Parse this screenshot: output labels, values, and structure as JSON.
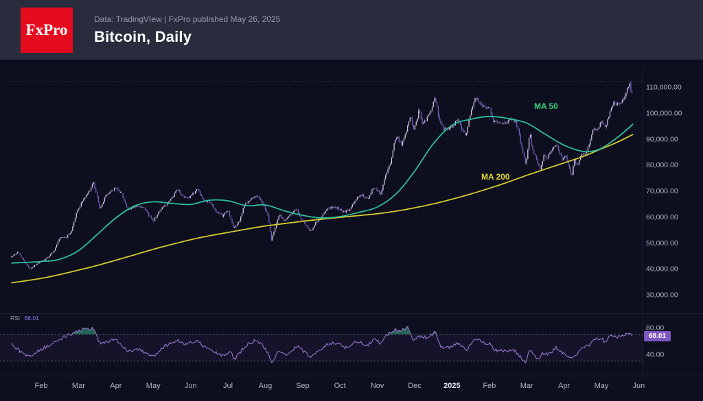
{
  "header": {
    "logo_text": "FxPro",
    "meta": "Data: TradingVIew | FxPro published May 26, 2025",
    "title": "Bitcoin, Daily"
  },
  "colors": {
    "page_bg": "#0d0f1e",
    "header_bg": "#282c3c",
    "logo_red": "#e60a1e",
    "candle_up": "#e3daf3",
    "candle_down": "#7b61c9",
    "wick": "#9c87d6",
    "ma50": "#2bbf9e",
    "ma50_label": "#35d07f",
    "ma200": "#d6ca2e",
    "ma200_label": "#e3d930",
    "rsi_line": "#9575cd",
    "badge_bg": "#7e57c2",
    "axis_text": "#b2b5be"
  },
  "chart_data": {
    "type": "candlestick",
    "symbol": "Bitcoin",
    "timeframe": "Daily",
    "title": "Bitcoin, Daily",
    "x_axis_note": "t = months after Feb 1 2024",
    "y_axis": {
      "min": 30000,
      "max": 110000,
      "tick_step": 10000
    },
    "high_line": 112000,
    "y_ticks": [
      {
        "label": "110,000.00",
        "value": 110000
      },
      {
        "label": "100,000.00",
        "value": 100000
      },
      {
        "label": "90,000.00",
        "value": 90000
      },
      {
        "label": "80,000.00",
        "value": 80000
      },
      {
        "label": "70,000.00",
        "value": 70000
      },
      {
        "label": "60,000.00",
        "value": 60000
      },
      {
        "label": "50,000.00",
        "value": 50000
      },
      {
        "label": "40,000.00",
        "value": 40000
      },
      {
        "label": "30,000.00",
        "value": 30000
      }
    ],
    "x_ticks": [
      {
        "label": "Feb",
        "t": 0
      },
      {
        "label": "Mar",
        "t": 1
      },
      {
        "label": "Apr",
        "t": 2
      },
      {
        "label": "May",
        "t": 3
      },
      {
        "label": "Jun",
        "t": 4
      },
      {
        "label": "Jul",
        "t": 5
      },
      {
        "label": "Aug",
        "t": 6
      },
      {
        "label": "Sep",
        "t": 7
      },
      {
        "label": "Oct",
        "t": 8
      },
      {
        "label": "Nov",
        "t": 9
      },
      {
        "label": "Dec",
        "t": 10
      },
      {
        "label": "2025",
        "t": 11,
        "strong": true
      },
      {
        "label": "Feb",
        "t": 12
      },
      {
        "label": "Mar",
        "t": 13
      },
      {
        "label": "Apr",
        "t": 14
      },
      {
        "label": "May",
        "t": 15
      },
      {
        "label": "Jun",
        "t": 16
      }
    ],
    "price_path": [
      [
        -0.8,
        44600
      ],
      [
        -0.62,
        46500
      ],
      [
        -0.45,
        42800
      ],
      [
        -0.3,
        40000
      ],
      [
        -0.12,
        41800
      ],
      [
        0,
        42800
      ],
      [
        0.18,
        44300
      ],
      [
        0.35,
        47100
      ],
      [
        0.5,
        51800
      ],
      [
        0.68,
        52200
      ],
      [
        0.8,
        54200
      ],
      [
        0.95,
        61800
      ],
      [
        1.1,
        66100
      ],
      [
        1.25,
        69000
      ],
      [
        1.4,
        73000
      ],
      [
        1.5,
        67800
      ],
      [
        1.58,
        62800
      ],
      [
        1.7,
        67500
      ],
      [
        1.85,
        69800
      ],
      [
        2,
        71200
      ],
      [
        2.15,
        69100
      ],
      [
        2.32,
        62500
      ],
      [
        2.5,
        64000
      ],
      [
        2.65,
        63900
      ],
      [
        2.78,
        62800
      ],
      [
        2.9,
        60300
      ],
      [
        3,
        58500
      ],
      [
        3.2,
        62900
      ],
      [
        3.45,
        66300
      ],
      [
        3.65,
        70500
      ],
      [
        3.8,
        67800
      ],
      [
        3.95,
        67500
      ],
      [
        4.1,
        69300
      ],
      [
        4.18,
        71100
      ],
      [
        4.35,
        66200
      ],
      [
        4.5,
        66000
      ],
      [
        4.7,
        61800
      ],
      [
        4.85,
        60300
      ],
      [
        5,
        62700
      ],
      [
        5.15,
        55500
      ],
      [
        5.3,
        58200
      ],
      [
        5.45,
        64800
      ],
      [
        5.65,
        67100
      ],
      [
        5.8,
        68200
      ],
      [
        5.95,
        64600
      ],
      [
        6.08,
        60200
      ],
      [
        6.16,
        50700
      ],
      [
        6.28,
        56800
      ],
      [
        6.38,
        60900
      ],
      [
        6.5,
        58700
      ],
      [
        6.7,
        61200
      ],
      [
        6.85,
        63200
      ],
      [
        6.95,
        59100
      ],
      [
        7.05,
        57500
      ],
      [
        7.2,
        54200
      ],
      [
        7.35,
        57600
      ],
      [
        7.5,
        59800
      ],
      [
        7.65,
        63300
      ],
      [
        7.8,
        63600
      ],
      [
        7.95,
        63300
      ],
      [
        8.1,
        61900
      ],
      [
        8.25,
        62500
      ],
      [
        8.45,
        67400
      ],
      [
        8.6,
        68400
      ],
      [
        8.75,
        66600
      ],
      [
        8.9,
        71500
      ],
      [
        9,
        70200
      ],
      [
        9.1,
        68700
      ],
      [
        9.2,
        75600
      ],
      [
        9.35,
        80400
      ],
      [
        9.45,
        88700
      ],
      [
        9.55,
        90500
      ],
      [
        9.65,
        87300
      ],
      [
        9.8,
        94300
      ],
      [
        9.9,
        98900
      ],
      [
        9.96,
        93100
      ],
      [
        10.05,
        96400
      ],
      [
        10.12,
        101500
      ],
      [
        10.2,
        95900
      ],
      [
        10.3,
        97300
      ],
      [
        10.45,
        101400
      ],
      [
        10.55,
        106100
      ],
      [
        10.65,
        97500
      ],
      [
        10.75,
        94300
      ],
      [
        10.9,
        93700
      ],
      [
        11,
        94400
      ],
      [
        11.15,
        98100
      ],
      [
        11.27,
        93500
      ],
      [
        11.38,
        91200
      ],
      [
        11.5,
        100500
      ],
      [
        11.62,
        106300
      ],
      [
        11.75,
        103700
      ],
      [
        11.9,
        102100
      ],
      [
        12,
        102400
      ],
      [
        12.1,
        96600
      ],
      [
        12.25,
        96500
      ],
      [
        12.4,
        95800
      ],
      [
        12.55,
        97600
      ],
      [
        12.7,
        96600
      ],
      [
        12.8,
        91500
      ],
      [
        12.9,
        84700
      ],
      [
        12.97,
        79800
      ],
      [
        13.04,
        86500
      ],
      [
        13.08,
        94000
      ],
      [
        13.14,
        86000
      ],
      [
        13.22,
        84300
      ],
      [
        13.3,
        80700
      ],
      [
        13.36,
        78600
      ],
      [
        13.46,
        83700
      ],
      [
        13.56,
        82600
      ],
      [
        13.66,
        86100
      ],
      [
        13.8,
        87500
      ],
      [
        13.95,
        82400
      ],
      [
        14.05,
        83200
      ],
      [
        14.15,
        78400
      ],
      [
        14.21,
        75800
      ],
      [
        14.27,
        82600
      ],
      [
        14.36,
        79600
      ],
      [
        14.46,
        84500
      ],
      [
        14.56,
        84000
      ],
      [
        14.66,
        87300
      ],
      [
        14.76,
        93400
      ],
      [
        14.9,
        94200
      ],
      [
        15,
        96500
      ],
      [
        15.1,
        94300
      ],
      [
        15.22,
        99900
      ],
      [
        15.32,
        104100
      ],
      [
        15.42,
        103500
      ],
      [
        15.52,
        103200
      ],
      [
        15.62,
        106600
      ],
      [
        15.7,
        109600
      ],
      [
        15.76,
        111000
      ],
      [
        15.81,
        107600
      ],
      [
        15.85,
        109300
      ]
    ],
    "ma50": {
      "label": "MA 50",
      "path": [
        [
          -0.8,
          42200
        ],
        [
          0,
          42800
        ],
        [
          0.5,
          43700
        ],
        [
          1,
          47000
        ],
        [
          1.5,
          53200
        ],
        [
          2,
          59600
        ],
        [
          2.5,
          64200
        ],
        [
          3,
          65800
        ],
        [
          3.5,
          65200
        ],
        [
          4,
          64800
        ],
        [
          4.5,
          66400
        ],
        [
          5,
          66200
        ],
        [
          5.5,
          64300
        ],
        [
          6,
          64600
        ],
        [
          6.5,
          62400
        ],
        [
          7,
          60600
        ],
        [
          7.5,
          59600
        ],
        [
          8,
          60100
        ],
        [
          8.5,
          61700
        ],
        [
          9,
          63800
        ],
        [
          9.5,
          68800
        ],
        [
          10,
          77600
        ],
        [
          10.5,
          88200
        ],
        [
          11,
          95300
        ],
        [
          11.5,
          97600
        ],
        [
          12,
          98700
        ],
        [
          12.5,
          97900
        ],
        [
          13,
          96100
        ],
        [
          13.5,
          91800
        ],
        [
          14,
          87600
        ],
        [
          14.5,
          85200
        ],
        [
          14.8,
          85400
        ],
        [
          15,
          86400
        ],
        [
          15.3,
          89200
        ],
        [
          15.6,
          92600
        ],
        [
          15.85,
          95800
        ]
      ]
    },
    "ma200": {
      "label": "MA 200",
      "path": [
        [
          -0.8,
          34600
        ],
        [
          0,
          36300
        ],
        [
          0.5,
          37800
        ],
        [
          1,
          39500
        ],
        [
          1.5,
          41300
        ],
        [
          2,
          43300
        ],
        [
          2.5,
          45400
        ],
        [
          3,
          47500
        ],
        [
          3.5,
          49400
        ],
        [
          4,
          51200
        ],
        [
          4.5,
          52700
        ],
        [
          5,
          54000
        ],
        [
          5.5,
          55300
        ],
        [
          6,
          56500
        ],
        [
          6.5,
          57400
        ],
        [
          7,
          58300
        ],
        [
          7.5,
          59100
        ],
        [
          8,
          59800
        ],
        [
          8.5,
          60500
        ],
        [
          9,
          61200
        ],
        [
          9.5,
          62200
        ],
        [
          10,
          63500
        ],
        [
          10.5,
          65000
        ],
        [
          11,
          66800
        ],
        [
          11.5,
          68800
        ],
        [
          12,
          71000
        ],
        [
          12.5,
          73400
        ],
        [
          13,
          76000
        ],
        [
          13.5,
          78400
        ],
        [
          14,
          80800
        ],
        [
          14.5,
          83200
        ],
        [
          15,
          86200
        ],
        [
          15.4,
          88600
        ],
        [
          15.85,
          91800
        ]
      ]
    },
    "rsi": {
      "label": "RSI",
      "value": "68.01",
      "badge": "68.01",
      "ticks": [
        {
          "label": "80.00",
          "value": 80
        },
        {
          "label": "40.00",
          "value": 40
        }
      ],
      "levels": [
        70,
        30
      ],
      "path": [
        [
          -0.8,
          55
        ],
        [
          -0.45,
          40
        ],
        [
          -0.3,
          38
        ],
        [
          0,
          48
        ],
        [
          0.35,
          57
        ],
        [
          0.6,
          66
        ],
        [
          0.95,
          74
        ],
        [
          1.2,
          78
        ],
        [
          1.4,
          79
        ],
        [
          1.58,
          55
        ],
        [
          1.8,
          60
        ],
        [
          2,
          63
        ],
        [
          2.32,
          45
        ],
        [
          2.6,
          48
        ],
        [
          2.9,
          40
        ],
        [
          3.05,
          37
        ],
        [
          3.3,
          52
        ],
        [
          3.65,
          61
        ],
        [
          3.85,
          55
        ],
        [
          4.18,
          60
        ],
        [
          4.4,
          50
        ],
        [
          4.7,
          42
        ],
        [
          4.9,
          38
        ],
        [
          5.05,
          45
        ],
        [
          5.17,
          32
        ],
        [
          5.45,
          52
        ],
        [
          5.7,
          60
        ],
        [
          5.9,
          55
        ],
        [
          6.08,
          42
        ],
        [
          6.17,
          27
        ],
        [
          6.35,
          44
        ],
        [
          6.55,
          40
        ],
        [
          6.75,
          48
        ],
        [
          6.88,
          52
        ],
        [
          7.05,
          43
        ],
        [
          7.22,
          36
        ],
        [
          7.4,
          45
        ],
        [
          7.6,
          53
        ],
        [
          7.82,
          58
        ],
        [
          8,
          55
        ],
        [
          8.15,
          50
        ],
        [
          8.45,
          60
        ],
        [
          8.75,
          53
        ],
        [
          8.92,
          63
        ],
        [
          9.1,
          56
        ],
        [
          9.25,
          68
        ],
        [
          9.45,
          77
        ],
        [
          9.6,
          75
        ],
        [
          9.82,
          80
        ],
        [
          9.96,
          62
        ],
        [
          10.12,
          68
        ],
        [
          10.3,
          65
        ],
        [
          10.55,
          73
        ],
        [
          10.7,
          52
        ],
        [
          10.9,
          50
        ],
        [
          11.15,
          58
        ],
        [
          11.38,
          45
        ],
        [
          11.62,
          64
        ],
        [
          11.8,
          58
        ],
        [
          12,
          57
        ],
        [
          12.12,
          47
        ],
        [
          12.4,
          46
        ],
        [
          12.7,
          45
        ],
        [
          12.97,
          27
        ],
        [
          13.08,
          46
        ],
        [
          13.3,
          33
        ],
        [
          13.45,
          42
        ],
        [
          13.6,
          40
        ],
        [
          13.8,
          50
        ],
        [
          13.97,
          42
        ],
        [
          14.2,
          33
        ],
        [
          14.45,
          47
        ],
        [
          14.65,
          53
        ],
        [
          14.8,
          62
        ],
        [
          15,
          64
        ],
        [
          15.12,
          57
        ],
        [
          15.25,
          70
        ],
        [
          15.45,
          66
        ],
        [
          15.62,
          70
        ],
        [
          15.76,
          74
        ],
        [
          15.85,
          68
        ]
      ]
    }
  }
}
